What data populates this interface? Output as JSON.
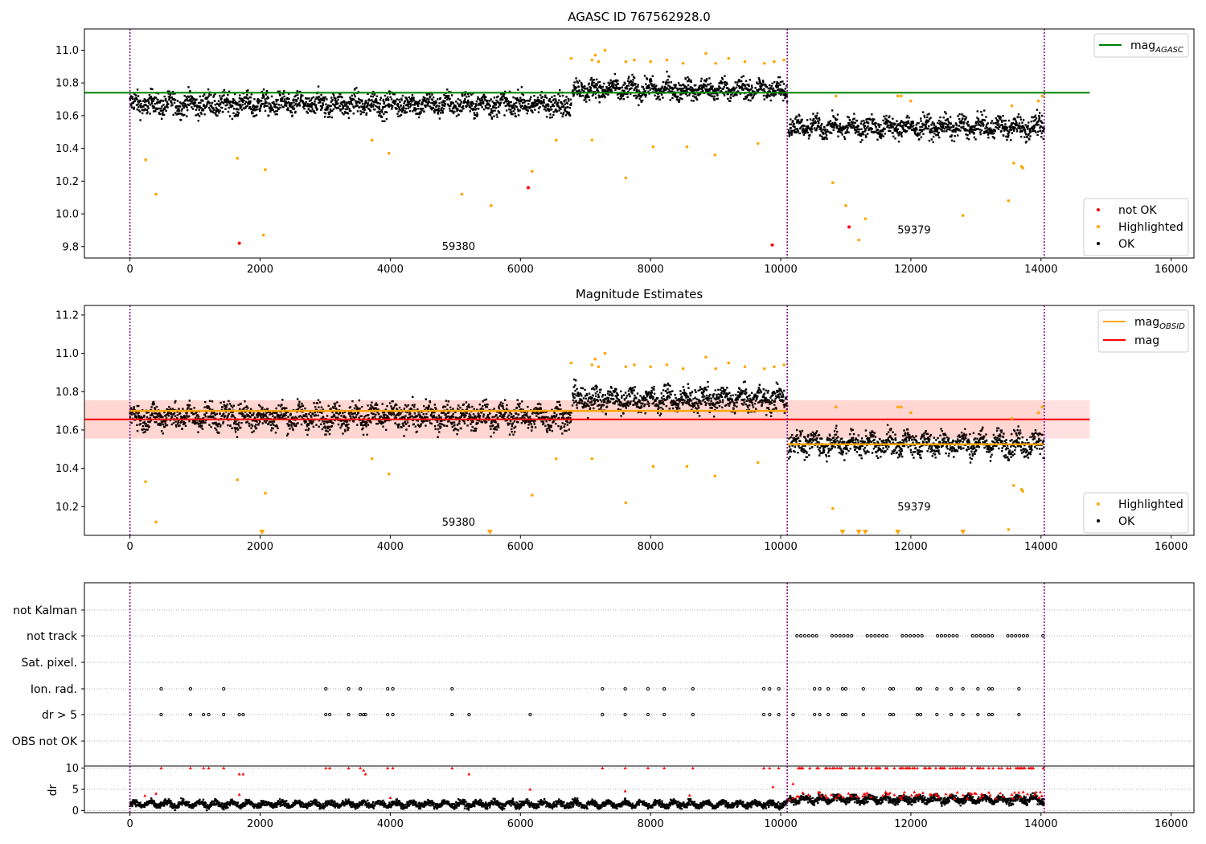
{
  "chart_data": [
    {
      "type": "scatter",
      "title": "AGASC ID 767562928.0",
      "xlim": [
        -700,
        16350
      ],
      "ylim": [
        9.73,
        11.13
      ],
      "xticks": [
        0,
        2000,
        4000,
        6000,
        8000,
        10000,
        12000,
        14000,
        16000
      ],
      "x_tick_labels": [
        "0",
        "2000",
        "4000",
        "6000",
        "8000",
        "10000",
        "12000",
        "14000",
        "16000"
      ],
      "yticks": [
        9.8,
        10.0,
        10.2,
        10.4,
        10.6,
        10.8,
        11.0
      ],
      "y_tick_labels": [
        "9.8",
        "10.0",
        "10.2",
        "10.4",
        "10.6",
        "10.8",
        "11.0"
      ],
      "vlines": [
        0,
        10100,
        14050
      ],
      "obs_labels": [
        {
          "text": "59380",
          "x": 5050,
          "y": 9.78
        },
        {
          "text": "59379",
          "x": 12050,
          "y": 9.88
        }
      ],
      "hlines": [
        {
          "name": "mag",
          "sub": "AGASC",
          "y": 10.74,
          "x": [
            -700,
            14750
          ],
          "color": "#008000"
        }
      ],
      "segments": [
        {
          "x": [
            0,
            6780
          ],
          "y0": 10.67,
          "y1": 10.67,
          "spread": 0.06
        },
        {
          "x": [
            6800,
            10100
          ],
          "y0": 10.76,
          "y1": 10.76,
          "spread": 0.055
        },
        {
          "x": [
            10120,
            14050
          ],
          "y0": 10.53,
          "y1": 10.53,
          "spread": 0.055
        }
      ],
      "highlighted": [
        [
          240,
          10.33
        ],
        [
          400,
          10.12
        ],
        [
          1650,
          10.34
        ],
        [
          2050,
          9.87
        ],
        [
          2080,
          10.27
        ],
        [
          3720,
          10.45
        ],
        [
          3980,
          10.37
        ],
        [
          5100,
          10.12
        ],
        [
          5550,
          10.05
        ],
        [
          6180,
          10.26
        ],
        [
          6550,
          10.45
        ],
        [
          7100,
          10.45
        ],
        [
          7620,
          10.22
        ],
        [
          8040,
          10.41
        ],
        [
          8560,
          10.41
        ],
        [
          8990,
          10.36
        ],
        [
          9650,
          10.43
        ],
        [
          10800,
          10.19
        ],
        [
          11000,
          10.05
        ],
        [
          11300,
          9.97
        ],
        [
          11200,
          9.84
        ],
        [
          12800,
          9.99
        ],
        [
          13500,
          10.08
        ],
        [
          13580,
          10.31
        ],
        [
          13720,
          10.28
        ],
        [
          13700,
          10.29
        ],
        [
          6780,
          10.95
        ],
        [
          7100,
          10.94
        ],
        [
          7150,
          10.97
        ],
        [
          7200,
          10.93
        ],
        [
          7300,
          11.0
        ],
        [
          7620,
          10.93
        ],
        [
          7750,
          10.94
        ],
        [
          8000,
          10.93
        ],
        [
          8250,
          10.94
        ],
        [
          8500,
          10.92
        ],
        [
          8850,
          10.98
        ],
        [
          9000,
          10.92
        ],
        [
          9200,
          10.95
        ],
        [
          9450,
          10.93
        ],
        [
          9750,
          10.92
        ],
        [
          9900,
          10.93
        ],
        [
          10050,
          10.94
        ],
        [
          11800,
          10.72
        ],
        [
          11850,
          10.72
        ],
        [
          12000,
          10.69
        ],
        [
          13550,
          10.66
        ],
        [
          13960,
          10.69
        ],
        [
          14020,
          10.72
        ],
        [
          10850,
          10.72
        ]
      ],
      "not_ok": [
        [
          1680,
          9.82
        ],
        [
          6120,
          10.16
        ],
        [
          9870,
          9.81
        ],
        [
          11050,
          9.92
        ]
      ],
      "legend_bottom": [
        {
          "label": "not OK",
          "color": "#ff0000"
        },
        {
          "label": "Highlighted",
          "color": "#ffa500"
        },
        {
          "label": "OK",
          "color": "#000000"
        }
      ]
    },
    {
      "type": "scatter",
      "title": "Magnitude Estimates",
      "xlim": [
        -700,
        16350
      ],
      "ylim": [
        10.05,
        11.25
      ],
      "xticks": [
        0,
        2000,
        4000,
        6000,
        8000,
        10000,
        12000,
        14000,
        16000
      ],
      "x_tick_labels": [
        "0",
        "2000",
        "4000",
        "6000",
        "8000",
        "10000",
        "12000",
        "14000",
        "16000"
      ],
      "yticks": [
        10.2,
        10.4,
        10.6,
        10.8,
        11.0,
        11.2
      ],
      "y_tick_labels": [
        "10.2",
        "10.4",
        "10.6",
        "10.8",
        "11.0",
        "11.2"
      ],
      "vlines": [
        0,
        10100,
        14050
      ],
      "obs_labels": [
        {
          "text": "59380",
          "x": 5050,
          "y": 10.1
        },
        {
          "text": "59379",
          "x": 12050,
          "y": 10.18
        }
      ],
      "mag_band": {
        "y": 10.655,
        "lo": 10.555,
        "hi": 10.755,
        "x": [
          -700,
          14750
        ]
      },
      "obsid_lines": [
        {
          "x": [
            0,
            10100
          ],
          "y": 10.7
        },
        {
          "x": [
            10100,
            14050
          ],
          "y": 10.525
        }
      ],
      "segments": [
        {
          "x": [
            0,
            6780
          ],
          "y0": 10.67,
          "y1": 10.67,
          "spread": 0.06
        },
        {
          "x": [
            6800,
            10100
          ],
          "y0": 10.76,
          "y1": 10.76,
          "spread": 0.055
        },
        {
          "x": [
            10120,
            14050
          ],
          "y0": 10.53,
          "y1": 10.53,
          "spread": 0.055
        }
      ],
      "highlighted": [
        [
          240,
          10.33
        ],
        [
          400,
          10.12
        ],
        [
          1650,
          10.34
        ],
        [
          2080,
          10.27
        ],
        [
          3720,
          10.45
        ],
        [
          3980,
          10.37
        ],
        [
          6180,
          10.26
        ],
        [
          6550,
          10.45
        ],
        [
          7100,
          10.45
        ],
        [
          7620,
          10.22
        ],
        [
          8040,
          10.41
        ],
        [
          8560,
          10.41
        ],
        [
          8990,
          10.36
        ],
        [
          9650,
          10.43
        ],
        [
          10800,
          10.19
        ],
        [
          13500,
          10.08
        ],
        [
          13580,
          10.31
        ],
        [
          13720,
          10.28
        ],
        [
          13700,
          10.29
        ],
        [
          6780,
          10.95
        ],
        [
          7100,
          10.94
        ],
        [
          7150,
          10.97
        ],
        [
          7200,
          10.93
        ],
        [
          7300,
          11.0
        ],
        [
          7620,
          10.93
        ],
        [
          7750,
          10.94
        ],
        [
          8000,
          10.93
        ],
        [
          8250,
          10.94
        ],
        [
          8500,
          10.92
        ],
        [
          8850,
          10.98
        ],
        [
          9000,
          10.92
        ],
        [
          9200,
          10.95
        ],
        [
          9450,
          10.93
        ],
        [
          9750,
          10.92
        ],
        [
          9900,
          10.93
        ],
        [
          10050,
          10.94
        ],
        [
          11800,
          10.72
        ],
        [
          11850,
          10.72
        ],
        [
          12000,
          10.69
        ],
        [
          13550,
          10.66
        ],
        [
          13960,
          10.69
        ],
        [
          14020,
          10.72
        ],
        [
          10850,
          10.72
        ]
      ],
      "below_range": [
        2030,
        5530,
        10950,
        11200,
        11300,
        11800,
        12800
      ],
      "legend_top": [
        {
          "label": "mag",
          "sub": "OBSID",
          "color": "#ffa500"
        },
        {
          "label": "mag",
          "sub": "",
          "color": "#ff0000"
        }
      ],
      "legend_bottom": [
        {
          "label": "Highlighted",
          "color": "#ffa500"
        },
        {
          "label": "OK",
          "color": "#000000"
        }
      ]
    },
    {
      "type": "scatter",
      "title": "",
      "xlim": [
        -700,
        16350
      ],
      "xticks": [
        0,
        2000,
        4000,
        6000,
        8000,
        10000,
        12000,
        14000,
        16000
      ],
      "x_tick_labels": [
        "0",
        "2000",
        "4000",
        "6000",
        "8000",
        "10000",
        "12000",
        "14000",
        "16000"
      ],
      "vlines": [
        0,
        10100,
        14050
      ],
      "flag_rows": [
        "not Kalman",
        "not track",
        "Sat. pixel.",
        "Ion. rad.",
        "dr > 5",
        "OBS not OK"
      ],
      "flags": {
        "not track": {
          "x_range": [
            10150,
            14050
          ],
          "step": 60,
          "gap_every": 7
        },
        "ion_rad_x": [
          480,
          930,
          1440,
          3010,
          3360,
          3540,
          3960,
          4040,
          4950,
          7260,
          7610,
          7960,
          8210,
          8650,
          9740,
          9830,
          9970,
          10520,
          10600,
          10730,
          10950,
          11000,
          11270,
          11680,
          11730,
          12100,
          12150,
          12400,
          12620,
          12800,
          13030,
          13200,
          13250,
          13660
        ],
        "dr5_x": [
          480,
          930,
          1130,
          1210,
          1440,
          1680,
          1740,
          3010,
          3070,
          3360,
          3540,
          3590,
          3620,
          3960,
          4040,
          4950,
          5210,
          6150,
          7260,
          7610,
          7960,
          8210,
          8650,
          9740,
          9830,
          9970,
          10190,
          10520,
          10600,
          10730,
          10950,
          11000,
          11270,
          11680,
          11730,
          12100,
          12150,
          12400,
          12620,
          12800,
          13030,
          13200,
          13250,
          13660
        ]
      },
      "dr": {
        "ylabel": "dr",
        "yticks": [
          0,
          5,
          10
        ],
        "y_tick_labels": [
          "0",
          "5",
          "10"
        ],
        "ylim": [
          -0.5,
          10.5
        ],
        "segments": [
          {
            "x": [
              0,
              10100
            ],
            "y": 1.5,
            "spread": 0.6
          },
          {
            "x": [
              10120,
              14050
            ],
            "y": 2.6,
            "spread": 0.7
          }
        ],
        "red_points": [
          [
            230,
            3.5
          ],
          [
            400,
            4.0
          ],
          [
            480,
            10
          ],
          [
            930,
            10
          ],
          [
            1130,
            10
          ],
          [
            1210,
            10
          ],
          [
            1440,
            10
          ],
          [
            1680,
            8.6
          ],
          [
            1740,
            8.6
          ],
          [
            1680,
            3.8
          ],
          [
            3010,
            10
          ],
          [
            3070,
            10
          ],
          [
            3360,
            10
          ],
          [
            3540,
            10
          ],
          [
            3590,
            9.5
          ],
          [
            3620,
            8.6
          ],
          [
            3960,
            10
          ],
          [
            4040,
            10
          ],
          [
            4000,
            3.0
          ],
          [
            4950,
            10
          ],
          [
            5210,
            8.6
          ],
          [
            6150,
            5.0
          ],
          [
            7260,
            10
          ],
          [
            7610,
            10
          ],
          [
            7610,
            4.6
          ],
          [
            7960,
            10
          ],
          [
            8210,
            10
          ],
          [
            8650,
            10
          ],
          [
            8600,
            3.6
          ],
          [
            9740,
            10
          ],
          [
            9830,
            10
          ],
          [
            9880,
            5.6
          ],
          [
            9970,
            10
          ],
          [
            10190,
            6.3
          ],
          [
            10140,
            2.6
          ],
          [
            10200,
            3.0
          ]
        ],
        "red_dense_x": [
          10250,
          14050
        ]
      }
    }
  ]
}
